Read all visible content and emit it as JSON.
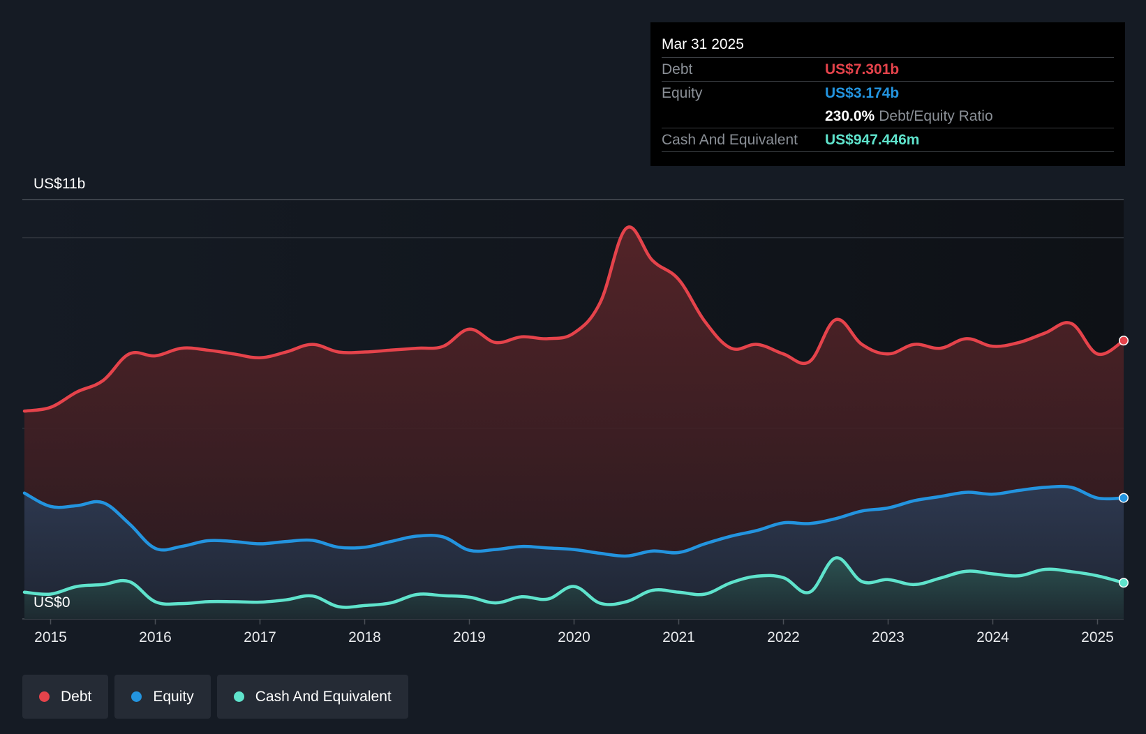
{
  "colors": {
    "background": "#151b24",
    "debt": "#e5434b",
    "equity": "#2394df",
    "cash": "#5fe3cc",
    "grid": "#3a3f47"
  },
  "tooltip": {
    "date": "Mar 31 2025",
    "debt_label": "Debt",
    "debt_value": "US$7.301b",
    "equity_label": "Equity",
    "equity_value": "US$3.174b",
    "ratio_value": "230.0%",
    "ratio_label": "Debt/Equity Ratio",
    "cash_label": "Cash And Equivalent",
    "cash_value": "US$947.446m"
  },
  "legend": [
    {
      "label": "Debt",
      "color": "#e5434b"
    },
    {
      "label": "Equity",
      "color": "#2394df"
    },
    {
      "label": "Cash And Equivalent",
      "color": "#5fe3cc"
    }
  ],
  "chart_data": {
    "type": "area",
    "title": "",
    "xlabel": "",
    "ylabel": "",
    "y_top_label": "US$11b",
    "y_bottom_label": "US$0",
    "ylim": [
      0,
      11
    ],
    "xlim": [
      2014.73,
      2025.25
    ],
    "x_ticks": [
      "2015",
      "2016",
      "2017",
      "2018",
      "2019",
      "2020",
      "2021",
      "2022",
      "2023",
      "2024",
      "2025"
    ],
    "series": [
      {
        "name": "Debt",
        "x": [
          2014.75,
          2015.0,
          2015.25,
          2015.5,
          2015.75,
          2016.0,
          2016.25,
          2016.5,
          2016.75,
          2017.0,
          2017.25,
          2017.5,
          2017.75,
          2018.0,
          2018.25,
          2018.5,
          2018.75,
          2019.0,
          2019.25,
          2019.5,
          2019.75,
          2020.0,
          2020.25,
          2020.5,
          2020.75,
          2021.0,
          2021.25,
          2021.5,
          2021.75,
          2022.0,
          2022.25,
          2022.5,
          2022.75,
          2023.0,
          2023.25,
          2023.5,
          2023.75,
          2024.0,
          2024.25,
          2024.5,
          2024.75,
          2025.0,
          2025.25
        ],
        "values": [
          5.45,
          5.55,
          5.95,
          6.25,
          6.95,
          6.9,
          7.1,
          7.05,
          6.95,
          6.85,
          7.0,
          7.2,
          7.0,
          7.0,
          7.05,
          7.1,
          7.15,
          7.6,
          7.25,
          7.4,
          7.35,
          7.5,
          8.3,
          10.25,
          9.4,
          8.9,
          7.8,
          7.1,
          7.2,
          6.95,
          6.75,
          7.85,
          7.2,
          6.95,
          7.2,
          7.1,
          7.35,
          7.15,
          7.25,
          7.5,
          7.75,
          6.95,
          7.3
        ]
      },
      {
        "name": "Equity",
        "x": [
          2014.75,
          2015.0,
          2015.25,
          2015.5,
          2015.75,
          2016.0,
          2016.25,
          2016.5,
          2016.75,
          2017.0,
          2017.25,
          2017.5,
          2017.75,
          2018.0,
          2018.25,
          2018.5,
          2018.75,
          2019.0,
          2019.25,
          2019.5,
          2019.75,
          2020.0,
          2020.25,
          2020.5,
          2020.75,
          2021.0,
          2021.25,
          2021.5,
          2021.75,
          2022.0,
          2022.25,
          2022.5,
          2022.75,
          2023.0,
          2023.25,
          2023.5,
          2023.75,
          2024.0,
          2024.25,
          2024.5,
          2024.75,
          2025.0,
          2025.25
        ],
        "values": [
          3.3,
          2.95,
          2.97,
          3.05,
          2.5,
          1.85,
          1.9,
          2.05,
          2.03,
          1.97,
          2.03,
          2.06,
          1.88,
          1.88,
          2.03,
          2.17,
          2.15,
          1.8,
          1.82,
          1.9,
          1.86,
          1.82,
          1.72,
          1.65,
          1.78,
          1.74,
          1.97,
          2.17,
          2.32,
          2.52,
          2.5,
          2.63,
          2.83,
          2.91,
          3.1,
          3.21,
          3.32,
          3.27,
          3.37,
          3.45,
          3.45,
          3.17,
          3.174
        ]
      },
      {
        "name": "Cash And Equivalent",
        "x": [
          2014.75,
          2015.0,
          2015.25,
          2015.5,
          2015.75,
          2016.0,
          2016.25,
          2016.5,
          2016.75,
          2017.0,
          2017.25,
          2017.5,
          2017.75,
          2018.0,
          2018.25,
          2018.5,
          2018.75,
          2019.0,
          2019.25,
          2019.5,
          2019.75,
          2020.0,
          2020.25,
          2020.5,
          2020.75,
          2021.0,
          2021.25,
          2021.5,
          2021.75,
          2022.0,
          2022.25,
          2022.5,
          2022.75,
          2023.0,
          2023.25,
          2023.5,
          2023.75,
          2024.0,
          2024.25,
          2024.5,
          2024.75,
          2025.0,
          2025.25
        ],
        "values": [
          0.7,
          0.65,
          0.85,
          0.9,
          0.98,
          0.45,
          0.4,
          0.45,
          0.45,
          0.44,
          0.5,
          0.6,
          0.32,
          0.35,
          0.42,
          0.64,
          0.61,
          0.57,
          0.42,
          0.58,
          0.52,
          0.85,
          0.41,
          0.45,
          0.75,
          0.7,
          0.65,
          0.95,
          1.12,
          1.08,
          0.7,
          1.6,
          0.98,
          1.03,
          0.9,
          1.07,
          1.25,
          1.18,
          1.13,
          1.3,
          1.24,
          1.13,
          0.947
        ]
      }
    ]
  }
}
